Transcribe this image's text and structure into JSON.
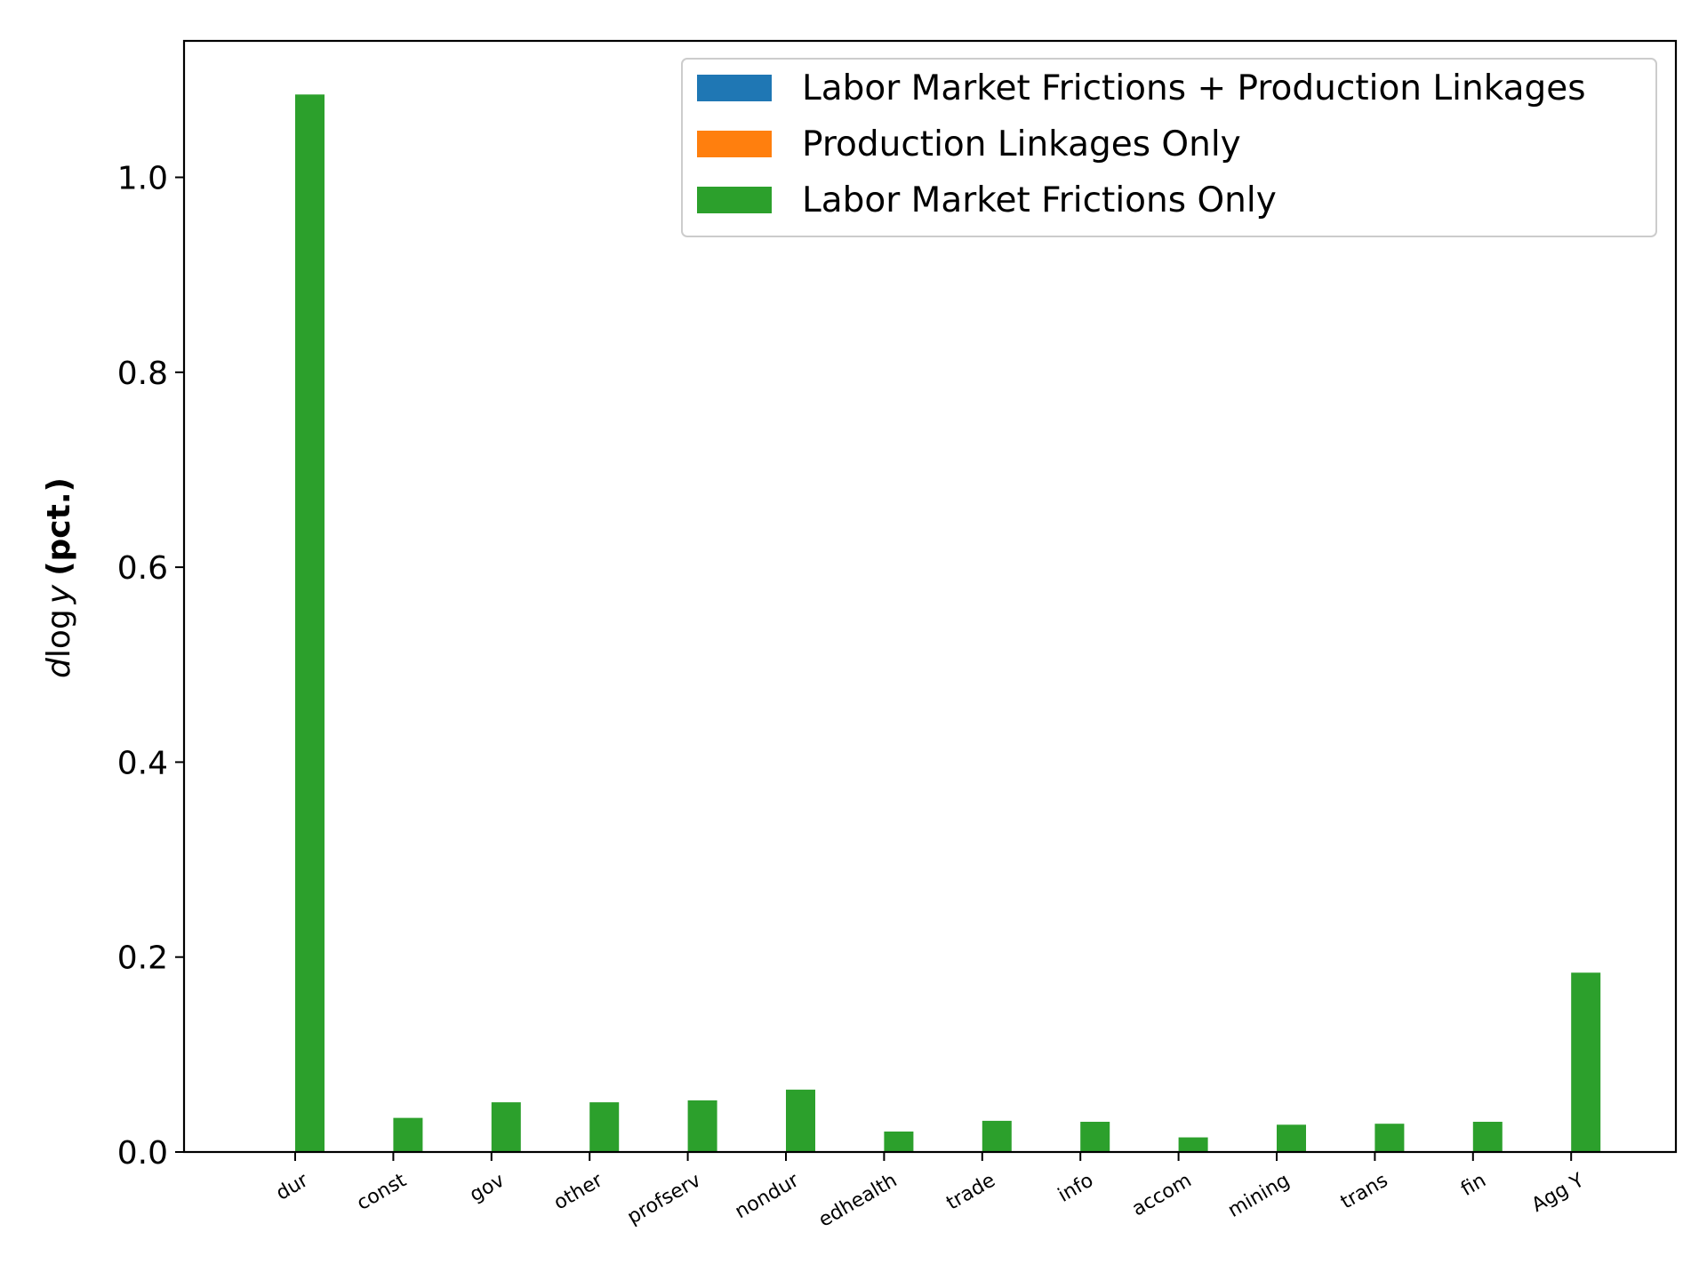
{
  "chart_data": {
    "type": "bar",
    "ylabel_parts": {
      "italic_d": "d",
      "log": "log",
      "italic_y": "y",
      "bold": "(pct.)"
    },
    "xlabel": "",
    "title": "",
    "categories": [
      "dur",
      "const",
      "gov",
      "other",
      "profserv",
      "nondur",
      "edhealth",
      "trade",
      "info",
      "accom",
      "mining",
      "trans",
      "fin",
      "Agg Y"
    ],
    "series": [
      {
        "name": "Labor Market Frictions + Production Linkages",
        "color": "#1f77b4",
        "values": [
          0,
          0,
          0,
          0,
          0,
          0,
          0,
          0,
          0,
          0,
          0,
          0,
          0,
          0
        ]
      },
      {
        "name": "Production Linkages Only",
        "color": "#ff7f0e",
        "values": [
          0,
          0,
          0,
          0,
          0,
          0,
          0,
          0,
          0,
          0,
          0,
          0,
          0,
          0
        ]
      },
      {
        "name": "Labor Market Frictions Only",
        "color": "#2ca02c",
        "values": [
          1.085,
          0.035,
          0.051,
          0.051,
          0.053,
          0.064,
          0.021,
          0.032,
          0.031,
          0.015,
          0.028,
          0.029,
          0.031,
          0.184
        ]
      }
    ],
    "ylim": [
      0,
      1.14
    ],
    "yticks": [
      "0.0",
      "0.2",
      "0.4",
      "0.6",
      "0.8",
      "1.0"
    ],
    "legend_position": "top-right",
    "grid": false
  }
}
